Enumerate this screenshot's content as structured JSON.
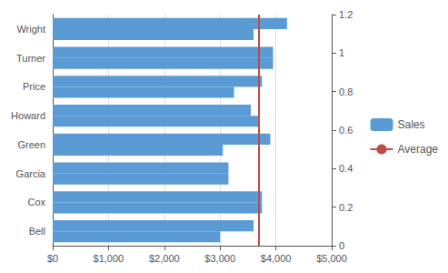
{
  "chart_data": {
    "type": "bar",
    "orientation": "horizontal",
    "categories": [
      "Bell",
      "Cox",
      "Garcia",
      "Green",
      "Howard",
      "Price",
      "Turner",
      "Wright"
    ],
    "series": [
      {
        "name": "Sales",
        "color": "#5B9BD5",
        "values": [
          3600,
          3750,
          3150,
          3900,
          3550,
          3750,
          3950,
          4200
        ]
      },
      {
        "name": "Sales",
        "color": "#5B9BD5",
        "values": [
          3000,
          3750,
          3150,
          3050,
          3700,
          3250,
          3950,
          3600
        ]
      }
    ],
    "reference_lines": [
      {
        "name": "Average",
        "value": 3700,
        "color": "#BE4B48"
      }
    ],
    "xlim": [
      0,
      5000
    ],
    "xticks": [
      {
        "value": 0,
        "label": "$0"
      },
      {
        "value": 1000,
        "label": "$1,000"
      },
      {
        "value": 2000,
        "label": "$2,000"
      },
      {
        "value": 3000,
        "label": "$3,000"
      },
      {
        "value": 4000,
        "label": "$4,000"
      },
      {
        "value": 5000,
        "label": "$5,000"
      }
    ],
    "y2lim": [
      0,
      1.2
    ],
    "y2ticks": [
      0,
      0.2,
      0.4,
      0.6,
      0.8,
      1,
      1.2
    ],
    "grid": true,
    "legend": "right"
  }
}
